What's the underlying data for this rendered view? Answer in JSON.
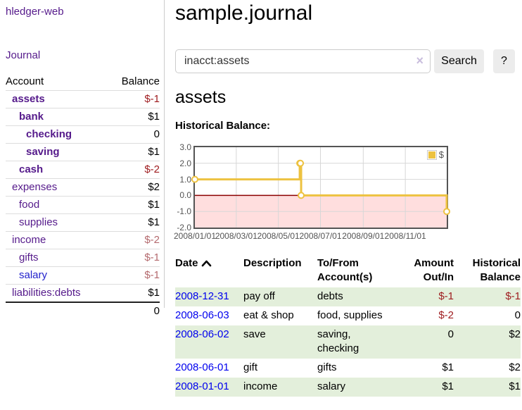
{
  "brand": "hledger-web",
  "nav": {
    "journal": "Journal"
  },
  "sidebar": {
    "header": {
      "account": "Account",
      "balance": "Balance"
    },
    "accounts": [
      {
        "name": "assets",
        "level": 1,
        "balance": "$-1",
        "bold": true,
        "val": "neg-dark",
        "link": ""
      },
      {
        "name": "bank",
        "level": 2,
        "balance": "$1",
        "bold": true,
        "val": "",
        "link": ""
      },
      {
        "name": "checking",
        "level": 3,
        "balance": "0",
        "bold": true,
        "val": "",
        "link": ""
      },
      {
        "name": "saving",
        "level": 3,
        "balance": "$1",
        "bold": true,
        "val": "",
        "link": ""
      },
      {
        "name": "cash",
        "level": 2,
        "balance": "$-2",
        "bold": true,
        "val": "neg-dark",
        "link": ""
      },
      {
        "name": "expenses",
        "level": 1,
        "balance": "$2",
        "bold": false,
        "val": "",
        "link": ""
      },
      {
        "name": "food",
        "level": 2,
        "balance": "$1",
        "bold": false,
        "val": "",
        "link": ""
      },
      {
        "name": "supplies",
        "level": 2,
        "balance": "$1",
        "bold": false,
        "val": "",
        "link": ""
      },
      {
        "name": "income",
        "level": 1,
        "balance": "$-2",
        "bold": false,
        "val": "neg-soft",
        "link": ""
      },
      {
        "name": "gifts",
        "level": 2,
        "balance": "$-1",
        "bold": false,
        "val": "neg-soft",
        "link": ""
      },
      {
        "name": "salary",
        "level": 2,
        "balance": "$-1",
        "bold": false,
        "val": "neg-soft",
        "link": "blue"
      },
      {
        "name": "liabilities:debts",
        "level": 1,
        "balance": "$1",
        "bold": false,
        "val": "",
        "link": ""
      }
    ],
    "total": "0"
  },
  "main": {
    "title": "sample.journal",
    "search": {
      "value": "inacct:assets",
      "clear": "×",
      "search_button": "Search",
      "help_button": "?"
    },
    "account_heading": "assets",
    "chart_title": "Historical Balance:"
  },
  "chart_data": {
    "type": "line",
    "step": true,
    "title": "Historical Balance",
    "legend": {
      "label": "$",
      "position": "top-right"
    },
    "series": [
      {
        "name": "$",
        "color": "#edc240",
        "x": [
          "2008-01-01",
          "2008-06-01",
          "2008-06-02",
          "2008-06-03",
          "2008-12-31"
        ],
        "y": [
          1,
          2,
          2,
          0,
          -1
        ]
      }
    ],
    "xlim": [
      "2008-01-01",
      "2008-12-31"
    ],
    "ylim": [
      -2,
      3
    ],
    "x_ticks": [
      {
        "date": "2008-01-01",
        "label": "2008/01/01"
      },
      {
        "date": "2008-03-01",
        "label": "2008/03/01"
      },
      {
        "date": "2008-05-01",
        "label": "2008/05/01"
      },
      {
        "date": "2008-07-01",
        "label": "2008/07/01"
      },
      {
        "date": "2008-09-01",
        "label": "2008/09/01"
      },
      {
        "date": "2008-11-01",
        "label": "2008/11/01"
      }
    ],
    "y_ticks": [
      {
        "value": 3,
        "label": "3.0"
      },
      {
        "value": 2,
        "label": "2.0"
      },
      {
        "value": 1,
        "label": "1.0"
      },
      {
        "value": 0,
        "label": "0.0"
      },
      {
        "value": -1,
        "label": "-1.0"
      },
      {
        "value": -2,
        "label": "-2.0"
      }
    ],
    "grid": true,
    "colors": {
      "negative_region": "#ffdede",
      "zero_line": "#8b0000",
      "grid_line": "#d7d7d7",
      "border": "#545454"
    }
  },
  "register": {
    "headers": {
      "date": "Date",
      "description": "Description",
      "accounts": "To/From Account(s)",
      "amount": "Amount Out/In",
      "balance": "Historical Balance"
    },
    "rows": [
      {
        "date": "2008-12-31",
        "description": "pay off",
        "accounts": "debts",
        "amount": "$-1",
        "balance": "$-1",
        "amount_neg": true,
        "balance_neg": true
      },
      {
        "date": "2008-06-03",
        "description": "eat & shop",
        "accounts": "food, supplies",
        "amount": "$-2",
        "balance": "0",
        "amount_neg": true,
        "balance_neg": false
      },
      {
        "date": "2008-06-02",
        "description": "save",
        "accounts": "saving, checking",
        "amount": "0",
        "balance": "$2",
        "amount_neg": false,
        "balance_neg": false
      },
      {
        "date": "2008-06-01",
        "description": "gift",
        "accounts": "gifts",
        "amount": "$1",
        "balance": "$2",
        "amount_neg": false,
        "balance_neg": false
      },
      {
        "date": "2008-01-01",
        "description": "income",
        "accounts": "salary",
        "amount": "$1",
        "balance": "$1",
        "amount_neg": false,
        "balance_neg": false
      }
    ]
  }
}
